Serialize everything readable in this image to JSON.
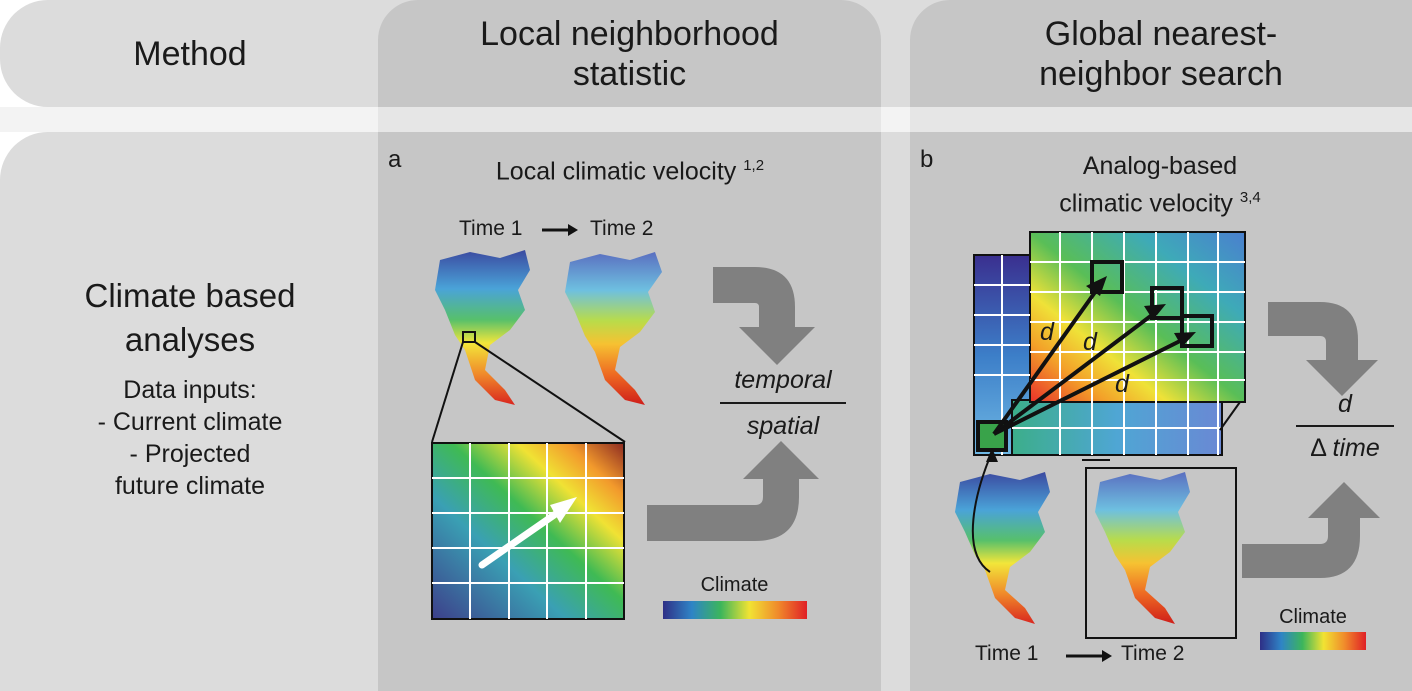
{
  "header": {
    "method_label": "Method",
    "col_a_title": "Local neighborhood statistic",
    "col_b_title": "Global nearest-neighbor search",
    "col_b_title_line1": "Global nearest-",
    "col_b_title_line2": "neighbor search",
    "col_a_title_line1": "Local neighborhood",
    "col_a_title_line2": "statistic"
  },
  "left": {
    "title_line1": "Climate based",
    "title_line2": "analyses",
    "inputs_heading": "Data inputs:",
    "input1": "- Current climate",
    "input2": "- Projected",
    "input3": "future climate"
  },
  "panel_a": {
    "letter": "a",
    "title": "Local climatic velocity",
    "refs": "1,2",
    "time1": "Time 1",
    "time2": "Time 2",
    "numerator": "temporal",
    "denominator": "spatial",
    "legend_label": "Climate"
  },
  "panel_b": {
    "letter": "b",
    "title_line1": "Analog-based",
    "title_line2": "climatic velocity",
    "refs": "3,4",
    "distance_label": "d",
    "numerator": "d",
    "denominator_delta": "Δ",
    "denominator_word": "time",
    "time1": "Time 1",
    "time2": "Time 2",
    "legend_label": "Climate"
  },
  "colors": {
    "band": "#dcdcdc",
    "column": "#c6c6c6",
    "arrow_gray": "#808080",
    "climate_cold": "#3a2f8f",
    "climate_warm": "#e8212a"
  }
}
